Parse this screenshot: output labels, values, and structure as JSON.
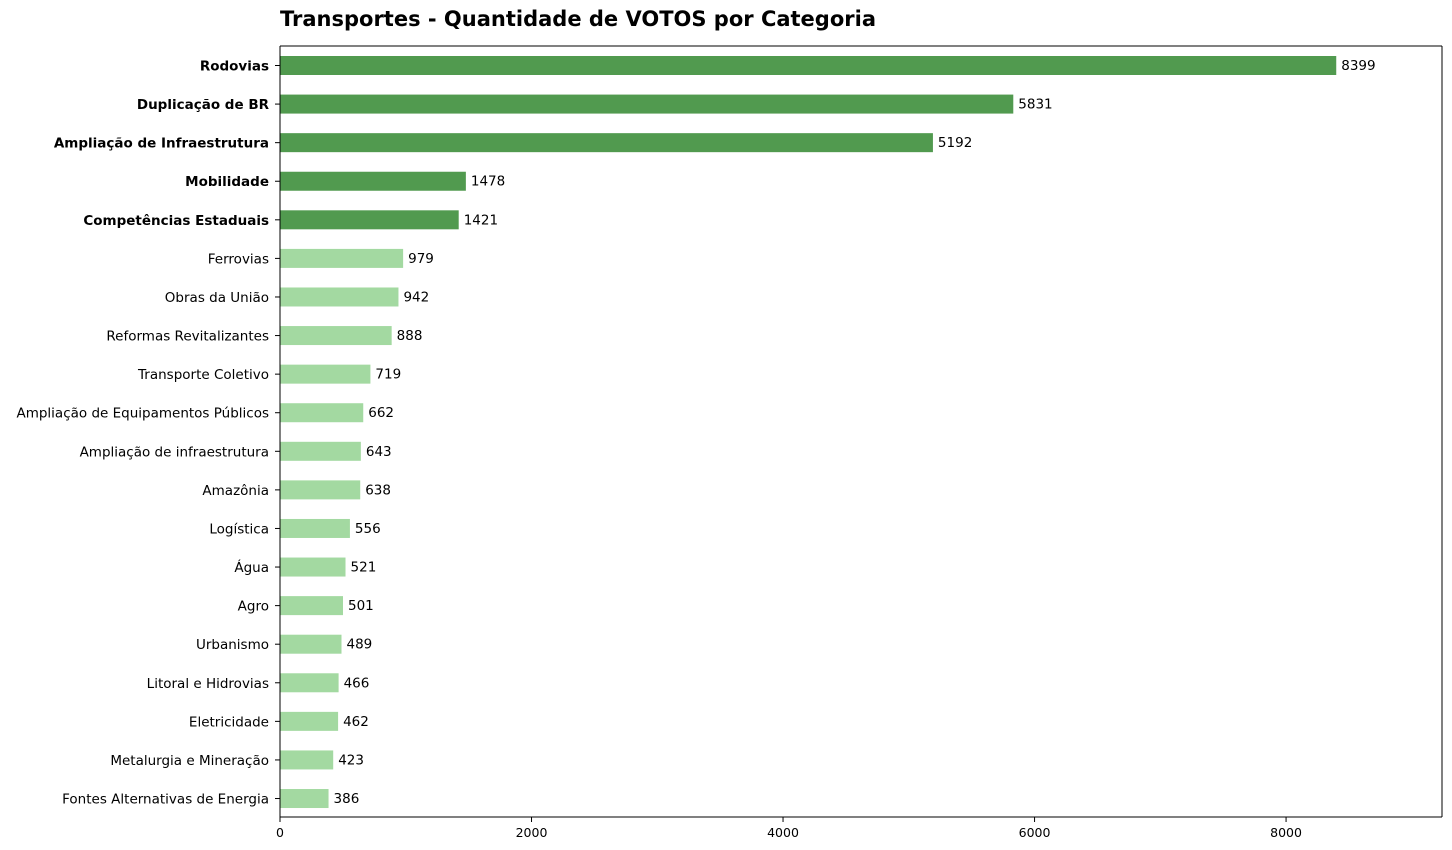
{
  "chart_data": {
    "type": "bar",
    "orientation": "horizontal",
    "title": "Transportes - Quantidade de VOTOS por Categoria",
    "xlabel": "",
    "ylabel": "",
    "xlim": [
      0,
      9240
    ],
    "x_ticks": [
      0,
      2000,
      4000,
      6000,
      8000
    ],
    "x_tick_labels": [
      "0",
      "2000",
      "4000",
      "6000",
      "8000"
    ],
    "grid": false,
    "colors": {
      "highlight": "#519a4f",
      "normal": "#a3d9a1"
    },
    "categories": [
      "Rodovias",
      "Duplicação de BR",
      "Ampliação de Infraestrutura",
      "Mobilidade",
      "Competências Estaduais",
      "Ferrovias",
      "Obras da União",
      "Reformas Revitalizantes",
      "Transporte Coletivo",
      "Ampliação de Equipamentos Públicos",
      "Ampliação de infraestrutura",
      "Amazônia",
      "Logística",
      "Água",
      "Agro",
      "Urbanismo",
      "Litoral e Hidrovias",
      "Eletricidade",
      "Metalurgia e Mineração",
      "Fontes Alternativas de Energia"
    ],
    "values": [
      8399,
      5831,
      5192,
      1478,
      1421,
      979,
      942,
      888,
      719,
      662,
      643,
      638,
      556,
      521,
      501,
      489,
      466,
      462,
      423,
      386
    ],
    "value_labels": [
      "8399",
      "5831",
      "5192",
      "1478",
      "1421",
      "979",
      "942",
      "888",
      "719",
      "662",
      "643",
      "638",
      "556",
      "521",
      "501",
      "489",
      "466",
      "462",
      "423",
      "386"
    ],
    "highlighted": [
      true,
      true,
      true,
      true,
      true,
      false,
      false,
      false,
      false,
      false,
      false,
      false,
      false,
      false,
      false,
      false,
      false,
      false,
      false,
      false
    ]
  }
}
